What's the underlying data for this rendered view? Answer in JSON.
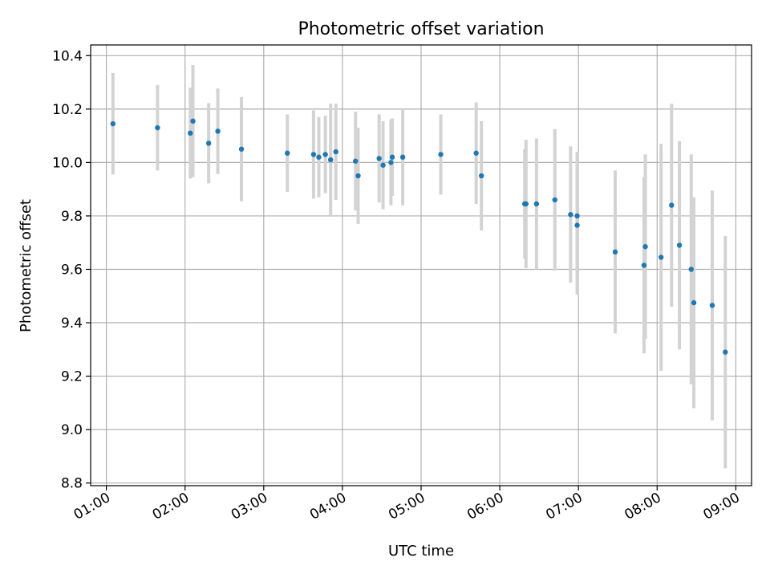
{
  "chart_data": {
    "type": "scatter",
    "title": "Photometric offset variation",
    "xlabel": "UTC time",
    "ylabel": "Photometric offset",
    "x_unit": "hours UTC",
    "xlim": [
      "00:48",
      "09:12"
    ],
    "ylim": [
      8.79,
      10.44
    ],
    "x_ticks": [
      "01:00",
      "02:00",
      "03:00",
      "04:00",
      "05:00",
      "06:00",
      "07:00",
      "08:00",
      "09:00"
    ],
    "y_ticks": [
      "8.8",
      "9.0",
      "9.2",
      "9.4",
      "9.6",
      "9.8",
      "10.0",
      "10.2",
      "10.4"
    ],
    "grid": true,
    "colors": {
      "point": "#1f77b4",
      "errorbar": "#d3d3d3",
      "grid": "#b0b0b0"
    },
    "points": [
      {
        "t": "01:05",
        "y": 10.145,
        "err": 0.19
      },
      {
        "t": "01:39",
        "y": 10.13,
        "err": 0.16
      },
      {
        "t": "02:04",
        "y": 10.11,
        "err": 0.17
      },
      {
        "t": "02:06",
        "y": 10.155,
        "err": 0.21
      },
      {
        "t": "02:18",
        "y": 10.072,
        "err": 0.15
      },
      {
        "t": "02:25",
        "y": 10.117,
        "err": 0.16
      },
      {
        "t": "02:43",
        "y": 10.05,
        "err": 0.195
      },
      {
        "t": "03:18",
        "y": 10.035,
        "err": 0.145
      },
      {
        "t": "03:38",
        "y": 10.03,
        "err": 0.165
      },
      {
        "t": "03:42",
        "y": 10.02,
        "err": 0.15
      },
      {
        "t": "03:47",
        "y": 10.03,
        "err": 0.145
      },
      {
        "t": "03:51",
        "y": 10.01,
        "err": 0.21
      },
      {
        "t": "03:55",
        "y": 10.04,
        "err": 0.18
      },
      {
        "t": "04:10",
        "y": 10.005,
        "err": 0.185
      },
      {
        "t": "04:12",
        "y": 9.95,
        "err": 0.18
      },
      {
        "t": "04:28",
        "y": 10.015,
        "err": 0.165
      },
      {
        "t": "04:31",
        "y": 9.99,
        "err": 0.165
      },
      {
        "t": "04:37",
        "y": 10.0,
        "err": 0.16
      },
      {
        "t": "04:38",
        "y": 10.02,
        "err": 0.145
      },
      {
        "t": "04:46",
        "y": 10.02,
        "err": 0.18
      },
      {
        "t": "05:15",
        "y": 10.03,
        "err": 0.15
      },
      {
        "t": "05:42",
        "y": 10.035,
        "err": 0.19
      },
      {
        "t": "05:46",
        "y": 9.95,
        "err": 0.205
      },
      {
        "t": "06:19",
        "y": 9.845,
        "err": 0.205
      },
      {
        "t": "06:20",
        "y": 9.845,
        "err": 0.24
      },
      {
        "t": "06:28",
        "y": 9.845,
        "err": 0.245
      },
      {
        "t": "06:42",
        "y": 9.86,
        "err": 0.265
      },
      {
        "t": "06:54",
        "y": 9.805,
        "err": 0.255
      },
      {
        "t": "06:59",
        "y": 9.8,
        "err": 0.24
      },
      {
        "t": "06:59",
        "y": 9.765,
        "err": 0.26
      },
      {
        "t": "07:28",
        "y": 9.665,
        "err": 0.305
      },
      {
        "t": "07:50",
        "y": 9.615,
        "err": 0.33
      },
      {
        "t": "07:51",
        "y": 9.685,
        "err": 0.345
      },
      {
        "t": "08:03",
        "y": 9.645,
        "err": 0.425
      },
      {
        "t": "08:11",
        "y": 9.84,
        "err": 0.38
      },
      {
        "t": "08:17",
        "y": 9.69,
        "err": 0.39
      },
      {
        "t": "08:26",
        "y": 9.6,
        "err": 0.43
      },
      {
        "t": "08:28",
        "y": 9.475,
        "err": 0.395
      },
      {
        "t": "08:42",
        "y": 9.465,
        "err": 0.43
      },
      {
        "t": "08:52",
        "y": 9.29,
        "err": 0.435
      }
    ]
  }
}
